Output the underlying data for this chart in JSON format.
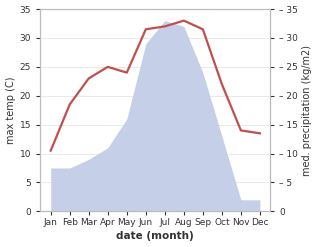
{
  "months": [
    "Jan",
    "Feb",
    "Mar",
    "Apr",
    "May",
    "Jun",
    "Jul",
    "Aug",
    "Sep",
    "Oct",
    "Nov",
    "Dec"
  ],
  "temperature": [
    10.5,
    18.5,
    23.0,
    25.0,
    24.0,
    31.5,
    32.0,
    33.0,
    31.5,
    22.0,
    14.0,
    13.5
  ],
  "precipitation": [
    7.5,
    7.5,
    9.0,
    11.0,
    16.0,
    29.0,
    33.0,
    32.0,
    24.0,
    13.0,
    2.0,
    2.0
  ],
  "temp_color": "#c0504d",
  "precip_fill_color": "#c5d0e8",
  "precip_edge_color": "#b0bcd8",
  "ylim": [
    0,
    35
  ],
  "yticks": [
    0,
    5,
    10,
    15,
    20,
    25,
    30,
    35
  ],
  "ylabel_left": "max temp (C)",
  "ylabel_right": "med. precipitation (kg/m2)",
  "xlabel": "date (month)",
  "bg_color": "#ffffff",
  "spine_color": "#bbbbbb",
  "tick_color": "#333333",
  "label_fontsize": 7.0,
  "tick_fontsize": 6.5,
  "xlabel_fontsize": 7.5,
  "xlabel_fontweight": "bold",
  "linewidth": 1.6
}
